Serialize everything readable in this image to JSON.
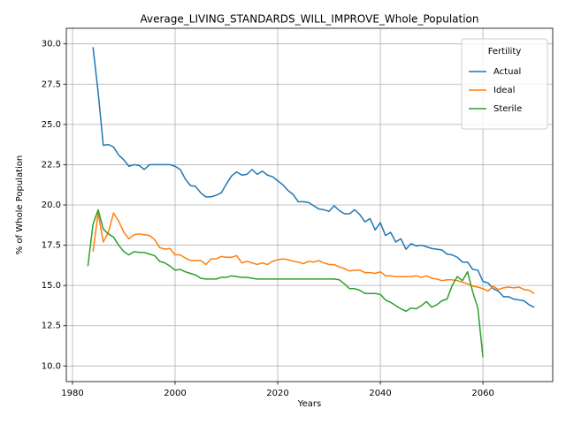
{
  "chart_data": {
    "type": "line",
    "title": "Average_LIVING_STANDARDS_WILL_IMPROVE_Whole_Population",
    "xlabel": "Years",
    "ylabel": "% of Whole Population",
    "x": [
      1983,
      1984,
      1985,
      1986,
      1987,
      1988,
      1989,
      1990,
      1991,
      1992,
      1993,
      1994,
      1995,
      1996,
      1997,
      1998,
      1999,
      2000,
      2001,
      2002,
      2003,
      2004,
      2005,
      2006,
      2007,
      2008,
      2009,
      2010,
      2011,
      2012,
      2013,
      2014,
      2015,
      2016,
      2017,
      2018,
      2019,
      2020,
      2021,
      2022,
      2023,
      2024,
      2025,
      2026,
      2027,
      2028,
      2029,
      2030,
      2031,
      2032,
      2033,
      2034,
      2035,
      2036,
      2037,
      2038,
      2039,
      2040,
      2041,
      2042,
      2043,
      2044,
      2045,
      2046,
      2047,
      2048,
      2049,
      2050,
      2051,
      2052,
      2053,
      2054,
      2055,
      2056,
      2057,
      2058,
      2059,
      2060,
      2061,
      2062,
      2063,
      2064,
      2065,
      2066,
      2067,
      2068,
      2069,
      2070
    ],
    "series": [
      {
        "name": "Actual",
        "color": "#1f77b4",
        "values": [
          null,
          29.8,
          27,
          23.7,
          23.75,
          23.6,
          23.1,
          22.8,
          22.4,
          22.5,
          22.45,
          22.2,
          22.5,
          22.5,
          22.5,
          22.5,
          22.5,
          22.4,
          22.2,
          21.6,
          21.2,
          21.15,
          20.75,
          20.5,
          20.5,
          20.6,
          20.75,
          21.3,
          21.8,
          22.05,
          21.85,
          21.9,
          22.2,
          21.9,
          22.1,
          21.85,
          21.75,
          21.5,
          21.25,
          20.9,
          20.65,
          20.2,
          20.2,
          20.15,
          19.95,
          19.75,
          19.7,
          19.6,
          19.95,
          19.65,
          19.45,
          19.45,
          19.7,
          19.4,
          18.95,
          19.15,
          18.45,
          18.9,
          18.1,
          18.3,
          17.7,
          17.9,
          17.25,
          17.6,
          17.45,
          17.5,
          17.4,
          17.3,
          17.25,
          17.2,
          16.95,
          16.9,
          16.75,
          16.45,
          16.45,
          16.0,
          15.95,
          15.25,
          15.15,
          14.8,
          14.65,
          14.3,
          14.3,
          14.15,
          14.1,
          14.05,
          13.8,
          13.65
        ]
      },
      {
        "name": "Ideal",
        "color": "#ff7f0e",
        "values": [
          null,
          17.1,
          19.5,
          17.7,
          18.3,
          19.5,
          19.0,
          18.3,
          17.9,
          18.15,
          18.2,
          18.15,
          18.1,
          17.85,
          17.35,
          17.25,
          17.3,
          16.9,
          16.9,
          16.7,
          16.55,
          16.55,
          16.55,
          16.3,
          16.65,
          16.65,
          16.8,
          16.75,
          16.75,
          16.85,
          16.4,
          16.5,
          16.4,
          16.3,
          16.4,
          16.3,
          16.5,
          16.6,
          16.65,
          16.6,
          16.5,
          16.45,
          16.35,
          16.5,
          16.45,
          16.55,
          16.4,
          16.3,
          16.3,
          16.15,
          16.05,
          15.9,
          15.95,
          15.95,
          15.8,
          15.8,
          15.75,
          15.85,
          15.6,
          15.6,
          15.55,
          15.55,
          15.55,
          15.55,
          15.6,
          15.5,
          15.6,
          15.45,
          15.4,
          15.3,
          15.35,
          15.35,
          15.3,
          15.2,
          15.1,
          14.95,
          14.9,
          14.8,
          14.65,
          14.95,
          14.75,
          14.85,
          14.9,
          14.85,
          14.9,
          14.75,
          14.7,
          14.5
        ]
      },
      {
        "name": "Sterile",
        "color": "#2ca02c",
        "values": [
          16.2,
          18.8,
          19.7,
          18.5,
          18.2,
          18.0,
          17.5,
          17.1,
          16.9,
          17.1,
          17.05,
          17.05,
          16.95,
          16.85,
          16.5,
          16.4,
          16.2,
          15.95,
          16.0,
          15.85,
          15.75,
          15.65,
          15.45,
          15.4,
          15.4,
          15.4,
          15.5,
          15.5,
          15.6,
          15.55,
          15.5,
          15.5,
          15.45,
          15.4,
          15.4,
          15.4,
          15.4,
          15.4,
          15.4,
          15.4,
          15.4,
          15.4,
          15.4,
          15.4,
          15.4,
          15.4,
          15.4,
          15.4,
          15.4,
          15.35,
          15.1,
          14.8,
          14.8,
          14.7,
          14.5,
          14.5,
          14.5,
          14.45,
          14.1,
          13.95,
          13.75,
          13.55,
          13.4,
          13.6,
          13.55,
          13.75,
          14.0,
          13.65,
          13.8,
          14.05,
          14.15,
          15.0,
          15.55,
          15.3,
          15.85,
          14.6,
          13.6,
          10.55,
          null,
          null,
          null,
          null,
          null,
          null,
          null,
          null,
          null,
          null
        ]
      }
    ],
    "xlim": [
      1978.8,
      2073.6
    ],
    "xticks": [
      1980,
      2000,
      2020,
      2040,
      2060
    ],
    "ylim": [
      9.03,
      30.97
    ],
    "yticks": [
      {
        "value": 10,
        "label": "10.0"
      },
      {
        "value": 12.5,
        "label": "12.5"
      },
      {
        "value": 15,
        "label": "15.0"
      },
      {
        "value": 17.5,
        "label": "17.5"
      },
      {
        "value": 20,
        "label": "20.0"
      },
      {
        "value": 22.5,
        "label": "22.5"
      },
      {
        "value": 25,
        "label": "25.0"
      },
      {
        "value": 27.5,
        "label": "27.5"
      },
      {
        "value": 30,
        "label": "30.0"
      }
    ],
    "grid": true,
    "legend_title": "Fertility",
    "legend_loc": "upper right"
  }
}
